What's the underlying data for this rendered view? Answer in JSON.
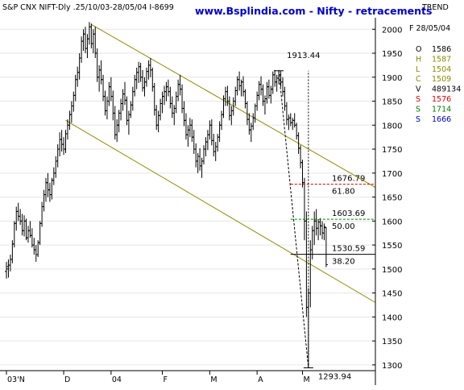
{
  "header": {
    "instrument": "S&P CNX NIFT-Dly .25/10/03-28/05/04 I-8699",
    "site_title": "www.Bsplindia.com - Nifty - retracements",
    "trend_label": "TREND"
  },
  "info_panel": {
    "date": "F 28/05/04",
    "rows": [
      {
        "label": "O",
        "value": "1586",
        "color": "#000000"
      },
      {
        "label": "H",
        "value": "1587",
        "color": "#8b8b00"
      },
      {
        "label": "L",
        "value": "1504",
        "color": "#8b8b00"
      },
      {
        "label": "C",
        "value": "1509",
        "color": "#8b8b00"
      },
      {
        "label": "V",
        "value": "489134",
        "color": "#000000"
      },
      {
        "label": "S",
        "value": "1576",
        "color": "#e00000"
      },
      {
        "label": "S",
        "value": "1714",
        "color": "#008000"
      },
      {
        "label": "S",
        "value": "1666",
        "color": "#0000cc"
      }
    ]
  },
  "chart_data": {
    "type": "ohlc",
    "title": "www.Bsplindia.com - Nifty - retracements",
    "y_ticks": [
      2000,
      1950,
      1900,
      1850,
      1800,
      1750,
      1700,
      1650,
      1600,
      1550,
      1500,
      1450,
      1400,
      1350,
      1300
    ],
    "ylim": [
      1288,
      2024
    ],
    "x_ticks": [
      {
        "label": "03'N",
        "x": 0
      },
      {
        "label": "D",
        "x": 29
      },
      {
        "label": "04",
        "x": 53
      },
      {
        "label": "F",
        "x": 79
      },
      {
        "label": "M",
        "x": 103
      },
      {
        "label": "A",
        "x": 127
      },
      {
        "label": "M",
        "x": 150
      }
    ],
    "xlim": [
      -2,
      188
    ],
    "bars": [
      [
        0,
        1495,
        1515,
        1480,
        1505
      ],
      [
        1,
        1500,
        1520,
        1482,
        1508
      ],
      [
        2,
        1508,
        1530,
        1495,
        1520
      ],
      [
        3,
        1520,
        1560,
        1512,
        1552
      ],
      [
        4,
        1552,
        1600,
        1545,
        1595
      ],
      [
        5,
        1595,
        1630,
        1580,
        1620
      ],
      [
        6,
        1620,
        1638,
        1600,
        1610
      ],
      [
        7,
        1610,
        1625,
        1592,
        1600
      ],
      [
        8,
        1600,
        1615,
        1570,
        1580
      ],
      [
        9,
        1580,
        1612,
        1568,
        1600
      ],
      [
        10,
        1600,
        1605,
        1560,
        1565
      ],
      [
        11,
        1565,
        1590,
        1555,
        1580
      ],
      [
        12,
        1580,
        1600,
        1565,
        1570
      ],
      [
        13,
        1570,
        1585,
        1545,
        1550
      ],
      [
        14,
        1550,
        1565,
        1530,
        1540
      ],
      [
        15,
        1540,
        1550,
        1515,
        1530
      ],
      [
        16,
        1530,
        1560,
        1525,
        1555
      ],
      [
        17,
        1555,
        1600,
        1550,
        1595
      ],
      [
        18,
        1595,
        1640,
        1588,
        1630
      ],
      [
        19,
        1630,
        1665,
        1620,
        1655
      ],
      [
        20,
        1655,
        1690,
        1640,
        1680
      ],
      [
        21,
        1680,
        1700,
        1650,
        1665
      ],
      [
        22,
        1665,
        1680,
        1640,
        1655
      ],
      [
        23,
        1655,
        1690,
        1645,
        1685
      ],
      [
        24,
        1685,
        1712,
        1675,
        1700
      ],
      [
        25,
        1700,
        1735,
        1690,
        1725
      ],
      [
        26,
        1725,
        1760,
        1712,
        1750
      ],
      [
        27,
        1750,
        1785,
        1735,
        1770
      ],
      [
        28,
        1770,
        1790,
        1745,
        1760
      ],
      [
        29,
        1760,
        1775,
        1738,
        1750
      ],
      [
        30,
        1750,
        1790,
        1742,
        1782
      ],
      [
        31,
        1782,
        1812,
        1770,
        1800
      ],
      [
        32,
        1800,
        1830,
        1790,
        1822
      ],
      [
        33,
        1822,
        1850,
        1805,
        1840
      ],
      [
        34,
        1840,
        1870,
        1828,
        1862
      ],
      [
        35,
        1862,
        1905,
        1850,
        1895
      ],
      [
        36,
        1895,
        1922,
        1880,
        1910
      ],
      [
        37,
        1910,
        1950,
        1895,
        1940
      ],
      [
        38,
        1940,
        1985,
        1930,
        1975
      ],
      [
        39,
        1975,
        2000,
        1955,
        1990
      ],
      [
        40,
        1990,
        2005,
        1950,
        1960
      ],
      [
        41,
        1960,
        1990,
        1940,
        1980
      ],
      [
        42,
        1980,
        2015,
        1968,
        2005
      ],
      [
        43,
        2005,
        2012,
        1960,
        1970
      ],
      [
        44,
        1970,
        2000,
        1950,
        1990
      ],
      [
        45,
        1990,
        2005,
        1940,
        1950
      ],
      [
        46,
        1950,
        1960,
        1890,
        1900
      ],
      [
        47,
        1900,
        1925,
        1870,
        1915
      ],
      [
        48,
        1915,
        1935,
        1885,
        1895
      ],
      [
        49,
        1895,
        1905,
        1850,
        1860
      ],
      [
        50,
        1860,
        1872,
        1820,
        1830
      ],
      [
        51,
        1830,
        1860,
        1812,
        1850
      ],
      [
        52,
        1850,
        1890,
        1840,
        1880
      ],
      [
        53,
        1880,
        1900,
        1850,
        1860
      ],
      [
        54,
        1860,
        1872,
        1810,
        1825
      ],
      [
        55,
        1825,
        1840,
        1770,
        1780
      ],
      [
        56,
        1780,
        1812,
        1765,
        1800
      ],
      [
        57,
        1800,
        1832,
        1785,
        1825
      ],
      [
        58,
        1825,
        1855,
        1810,
        1845
      ],
      [
        59,
        1845,
        1875,
        1830,
        1865
      ],
      [
        60,
        1865,
        1890,
        1842,
        1852
      ],
      [
        61,
        1852,
        1860,
        1800,
        1810
      ],
      [
        62,
        1810,
        1830,
        1780,
        1822
      ],
      [
        63,
        1822,
        1850,
        1815,
        1842
      ],
      [
        64,
        1842,
        1880,
        1830,
        1870
      ],
      [
        65,
        1870,
        1905,
        1860,
        1895
      ],
      [
        66,
        1895,
        1920,
        1875,
        1910
      ],
      [
        67,
        1910,
        1932,
        1888,
        1922
      ],
      [
        68,
        1922,
        1930,
        1890,
        1900
      ],
      [
        69,
        1900,
        1915,
        1870,
        1878
      ],
      [
        70,
        1878,
        1900,
        1860,
        1890
      ],
      [
        71,
        1890,
        1920,
        1880,
        1912
      ],
      [
        72,
        1912,
        1935,
        1895,
        1925
      ],
      [
        73,
        1925,
        1940,
        1900,
        1915
      ],
      [
        74,
        1915,
        1920,
        1870,
        1880
      ],
      [
        75,
        1880,
        1888,
        1820,
        1832
      ],
      [
        76,
        1832,
        1842,
        1790,
        1800
      ],
      [
        77,
        1800,
        1830,
        1785,
        1820
      ],
      [
        78,
        1820,
        1855,
        1810,
        1845
      ],
      [
        79,
        1845,
        1870,
        1825,
        1860
      ],
      [
        80,
        1860,
        1882,
        1842,
        1870
      ],
      [
        81,
        1870,
        1890,
        1850,
        1880
      ],
      [
        82,
        1880,
        1895,
        1860,
        1870
      ],
      [
        83,
        1870,
        1880,
        1835,
        1845
      ],
      [
        84,
        1845,
        1860,
        1815,
        1825
      ],
      [
        85,
        1825,
        1842,
        1800,
        1835
      ],
      [
        86,
        1835,
        1870,
        1825,
        1860
      ],
      [
        87,
        1860,
        1895,
        1850,
        1885
      ],
      [
        88,
        1885,
        1905,
        1862,
        1875
      ],
      [
        89,
        1875,
        1885,
        1825,
        1835
      ],
      [
        90,
        1835,
        1850,
        1798,
        1810
      ],
      [
        91,
        1810,
        1825,
        1770,
        1780
      ],
      [
        92,
        1780,
        1800,
        1755,
        1790
      ],
      [
        93,
        1790,
        1815,
        1775,
        1800
      ],
      [
        94,
        1800,
        1812,
        1765,
        1775
      ],
      [
        95,
        1775,
        1790,
        1740,
        1750
      ],
      [
        96,
        1750,
        1762,
        1712,
        1725
      ],
      [
        97,
        1725,
        1742,
        1700,
        1735
      ],
      [
        98,
        1735,
        1752,
        1705,
        1715
      ],
      [
        99,
        1715,
        1732,
        1690,
        1725
      ],
      [
        100,
        1725,
        1758,
        1718,
        1750
      ],
      [
        101,
        1750,
        1775,
        1735,
        1765
      ],
      [
        102,
        1765,
        1790,
        1748,
        1780
      ],
      [
        103,
        1780,
        1810,
        1770,
        1800
      ],
      [
        104,
        1800,
        1812,
        1758,
        1768
      ],
      [
        105,
        1768,
        1782,
        1735,
        1745
      ],
      [
        106,
        1745,
        1765,
        1725,
        1755
      ],
      [
        107,
        1755,
        1782,
        1745,
        1775
      ],
      [
        108,
        1775,
        1808,
        1765,
        1800
      ],
      [
        109,
        1800,
        1830,
        1790,
        1822
      ],
      [
        110,
        1822,
        1862,
        1815,
        1855
      ],
      [
        111,
        1855,
        1880,
        1840,
        1870
      ],
      [
        112,
        1870,
        1882,
        1840,
        1850
      ],
      [
        113,
        1850,
        1860,
        1810,
        1820
      ],
      [
        114,
        1820,
        1840,
        1800,
        1830
      ],
      [
        115,
        1830,
        1858,
        1820,
        1850
      ],
      [
        116,
        1850,
        1880,
        1840,
        1872
      ],
      [
        117,
        1872,
        1902,
        1862,
        1895
      ],
      [
        118,
        1895,
        1912,
        1872,
        1882
      ],
      [
        119,
        1882,
        1895,
        1860,
        1890
      ],
      [
        120,
        1890,
        1902,
        1860,
        1870
      ],
      [
        121,
        1870,
        1875,
        1835,
        1845
      ],
      [
        122,
        1845,
        1850,
        1800,
        1812
      ],
      [
        123,
        1812,
        1825,
        1780,
        1790
      ],
      [
        124,
        1790,
        1805,
        1765,
        1798
      ],
      [
        125,
        1798,
        1825,
        1790,
        1815
      ],
      [
        126,
        1815,
        1845,
        1805,
        1840
      ],
      [
        127,
        1840,
        1870,
        1830,
        1862
      ],
      [
        128,
        1862,
        1892,
        1852,
        1885
      ],
      [
        129,
        1885,
        1902,
        1862,
        1875
      ],
      [
        130,
        1875,
        1885,
        1840,
        1850
      ],
      [
        131,
        1850,
        1862,
        1822,
        1855
      ],
      [
        132,
        1855,
        1890,
        1845,
        1880
      ],
      [
        133,
        1880,
        1895,
        1855,
        1862
      ],
      [
        134,
        1862,
        1882,
        1845,
        1875
      ],
      [
        135,
        1875,
        1912,
        1865,
        1905
      ],
      [
        136,
        1905,
        1915,
        1880,
        1890
      ],
      [
        137,
        1890,
        1905,
        1870,
        1898
      ],
      [
        138,
        1898,
        1915,
        1885,
        1905
      ],
      [
        139,
        1905,
        1913,
        1880,
        1890
      ],
      [
        140,
        1890,
        1900,
        1860,
        1870
      ],
      [
        141,
        1870,
        1880,
        1830,
        1840
      ],
      [
        142,
        1840,
        1848,
        1800,
        1812
      ],
      [
        143,
        1812,
        1822,
        1790,
        1815
      ],
      [
        144,
        1815,
        1825,
        1798,
        1805
      ],
      [
        145,
        1805,
        1815,
        1790,
        1810
      ],
      [
        146,
        1810,
        1825,
        1795,
        1800
      ],
      [
        147,
        1800,
        1805,
        1770,
        1778
      ],
      [
        148,
        1778,
        1785,
        1740,
        1752
      ],
      [
        149,
        1752,
        1758,
        1710,
        1722
      ],
      [
        150,
        1722,
        1728,
        1670,
        1680
      ],
      [
        151,
        1680,
        1690,
        1560,
        1600
      ],
      [
        152,
        1600,
        1620,
        1400,
        1420
      ],
      [
        153,
        1420,
        1460,
        1294,
        1450
      ],
      [
        154,
        1450,
        1560,
        1420,
        1540
      ],
      [
        155,
        1540,
        1590,
        1520,
        1580
      ],
      [
        156,
        1580,
        1620,
        1550,
        1600
      ],
      [
        157,
        1600,
        1625,
        1570,
        1585
      ],
      [
        158,
        1585,
        1604,
        1560,
        1598
      ],
      [
        159,
        1598,
        1606,
        1570,
        1590
      ],
      [
        160,
        1590,
        1600,
        1562,
        1575
      ],
      [
        161,
        1575,
        1595,
        1560,
        1588
      ],
      [
        162,
        1586,
        1587,
        1504,
        1509
      ]
    ],
    "channel_lines": [
      {
        "name": "upper",
        "from": [
          43,
          2010
        ],
        "to": [
          187,
          1670
        ]
      },
      {
        "name": "lower",
        "from": [
          30,
          1810
        ],
        "to": [
          187,
          1430
        ]
      }
    ],
    "annotations": [
      {
        "text": "1913.44",
        "x": 138,
        "y": 1913.44,
        "type": "high"
      },
      {
        "text": "1293.94",
        "x": 153,
        "y": 1293.94,
        "type": "low"
      }
    ],
    "retracements": [
      {
        "level": 1676.79,
        "label": "1676.79",
        "pct_label": "61.80",
        "color": "#e00000"
      },
      {
        "level": 1603.69,
        "label": "1603.69",
        "pct_label": "50.00",
        "color": "#008000"
      },
      {
        "level": 1530.59,
        "label": "1530.59",
        "pct_label": "38.20",
        "color": "#000000"
      }
    ]
  }
}
